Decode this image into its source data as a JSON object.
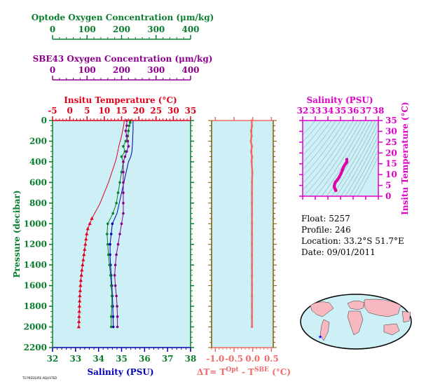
{
  "oxygen_scales": {
    "optode": {
      "title": "Optode Oxygen Concentration (μm/kg)",
      "ticks": [
        "0",
        "100",
        "200",
        "300",
        "400"
      ],
      "color": "#0b7d2f"
    },
    "sbe43": {
      "title": "SBE43 Oxygen Concentration (μm/kg)",
      "ticks": [
        "0",
        "100",
        "200",
        "300",
        "400"
      ],
      "color": "#8b008b"
    }
  },
  "main_panel": {
    "top_title": "Insitu Temperature (°C)",
    "top_ticks": [
      "-5",
      "0",
      "5",
      "10",
      "15",
      "20",
      "25",
      "30",
      "35"
    ],
    "bottom_title": "Salinity (PSU)",
    "bottom_ticks": [
      "32",
      "33",
      "34",
      "35",
      "36",
      "37",
      "38"
    ],
    "y_title": "Pressure (decibar)",
    "y_ticks": [
      "0",
      "200",
      "400",
      "600",
      "800",
      "1000",
      "1200",
      "1400",
      "1600",
      "1800",
      "2000",
      "2200"
    ],
    "background": "#cdeff6"
  },
  "delta_panel": {
    "x_ticks": [
      "-1.0",
      "-0.5",
      "0.0",
      "0.5"
    ],
    "x_title_main": "ΔT= T",
    "x_title_sup1": "Opt",
    "x_title_mid": " - T",
    "x_title_sup2": "SBE",
    "x_title_end": " (°C)"
  },
  "ts_panel": {
    "top_title": "Salinity (PSU)",
    "top_ticks": [
      "32",
      "33",
      "34",
      "35",
      "36",
      "37",
      "38"
    ],
    "y_title": "Insitu Temperature (°C)",
    "y_ticks": [
      "0",
      "5",
      "10",
      "15",
      "20",
      "25",
      "30",
      "35"
    ]
  },
  "float_info": {
    "float": "Float:  5257",
    "profile": "Profile:  246",
    "location": "Location:  33.2°S  51.7°E",
    "date": "Date:  09/01/2011"
  },
  "footer_note": "TS PRESSURE ADJUSTED",
  "chart_data": [
    {
      "type": "line",
      "name": "profile",
      "ylabel": "Pressure (decibar)",
      "ylim": [
        2200,
        0
      ],
      "series": [
        {
          "name": "Insitu Temperature",
          "axis": "temperature",
          "xlim": [
            -5,
            35
          ],
          "color": "#e0001a",
          "marker": "triangle",
          "points": [
            [
              15.8,
              0
            ],
            [
              15.6,
              50
            ],
            [
              15.3,
              100
            ],
            [
              15.0,
              150
            ],
            [
              14.6,
              200
            ],
            [
              14.2,
              250
            ],
            [
              13.9,
              300
            ],
            [
              13.6,
              350
            ],
            [
              13.2,
              400
            ],
            [
              12.7,
              450
            ],
            [
              12.2,
              500
            ],
            [
              11.7,
              550
            ],
            [
              11.2,
              600
            ],
            [
              10.6,
              650
            ],
            [
              10.0,
              700
            ],
            [
              9.4,
              750
            ],
            [
              8.8,
              800
            ],
            [
              8.0,
              850
            ],
            [
              7.2,
              900
            ],
            [
              6.4,
              950
            ],
            [
              5.8,
              1000
            ],
            [
              5.2,
              1050
            ],
            [
              4.9,
              1100
            ],
            [
              4.7,
              1150
            ],
            [
              4.5,
              1200
            ],
            [
              4.3,
              1250
            ],
            [
              4.1,
              1300
            ],
            [
              3.9,
              1350
            ],
            [
              3.7,
              1400
            ],
            [
              3.5,
              1450
            ],
            [
              3.35,
              1500
            ],
            [
              3.2,
              1550
            ],
            [
              3.1,
              1600
            ],
            [
              3.0,
              1650
            ],
            [
              2.9,
              1700
            ],
            [
              2.85,
              1750
            ],
            [
              2.8,
              1800
            ],
            [
              2.75,
              1850
            ],
            [
              2.7,
              1900
            ],
            [
              2.65,
              1950
            ],
            [
              2.6,
              2000
            ]
          ]
        },
        {
          "name": "Salinity",
          "axis": "salinity",
          "xlim": [
            32,
            38
          ],
          "color": "#0000b4",
          "marker": "dot",
          "points": [
            [
              35.5,
              0
            ],
            [
              35.5,
              100
            ],
            [
              35.48,
              200
            ],
            [
              35.45,
              300
            ],
            [
              35.4,
              350
            ],
            [
              35.3,
              400
            ],
            [
              35.2,
              500
            ],
            [
              35.1,
              600
            ],
            [
              35.0,
              700
            ],
            [
              34.9,
              800
            ],
            [
              34.8,
              900
            ],
            [
              34.6,
              1000
            ],
            [
              34.55,
              1100
            ],
            [
              34.5,
              1200
            ],
            [
              34.5,
              1300
            ],
            [
              34.52,
              1400
            ],
            [
              34.55,
              1500
            ],
            [
              34.58,
              1600
            ],
            [
              34.6,
              1700
            ],
            [
              34.62,
              1800
            ],
            [
              34.63,
              1900
            ],
            [
              34.64,
              2000
            ]
          ]
        },
        {
          "name": "Optode Oxygen",
          "axis": "optode_oxygen",
          "xlim": [
            0,
            400
          ],
          "color": "#0b7d2f",
          "marker": "dot",
          "points": [
            [
              225,
              0
            ],
            [
              225,
              20
            ],
            [
              222,
              50
            ],
            [
              220,
              100
            ],
            [
              218,
              150
            ],
            [
              212,
              200
            ],
            [
              205,
              250
            ],
            [
              210,
              300
            ],
            [
              200,
              350
            ],
            [
              205,
              400
            ],
            [
              200,
              500
            ],
            [
              195,
              600
            ],
            [
              190,
              700
            ],
            [
              185,
              800
            ],
            [
              175,
              900
            ],
            [
              160,
              1000
            ],
            [
              158,
              1100
            ],
            [
              160,
              1200
            ],
            [
              162,
              1300
            ],
            [
              165,
              1400
            ],
            [
              168,
              1500
            ],
            [
              170,
              1600
            ],
            [
              172,
              1700
            ],
            [
              172,
              1800
            ],
            [
              170,
              1900
            ],
            [
              170,
              2000
            ]
          ]
        },
        {
          "name": "SBE43 Oxygen",
          "axis": "sbe43_oxygen",
          "xlim": [
            0,
            400
          ],
          "color": "#8b008b",
          "marker": "dot",
          "points": [
            [
              215,
              0
            ],
            [
              215,
              50
            ],
            [
              212,
              100
            ],
            [
              215,
              150
            ],
            [
              218,
              200
            ],
            [
              220,
              250
            ],
            [
              215,
              300
            ],
            [
              210,
              350
            ],
            [
              205,
              400
            ],
            [
              205,
              500
            ],
            [
              205,
              600
            ],
            [
              205,
              700
            ],
            [
              205,
              800
            ],
            [
              205,
              900
            ],
            [
              200,
              1000
            ],
            [
              195,
              1100
            ],
            [
              190,
              1200
            ],
            [
              185,
              1300
            ],
            [
              182,
              1400
            ],
            [
              180,
              1500
            ],
            [
              182,
              1600
            ],
            [
              185,
              1700
            ],
            [
              187,
              1800
            ],
            [
              188,
              1900
            ],
            [
              188,
              2000
            ]
          ]
        }
      ]
    },
    {
      "type": "line",
      "name": "temperature difference",
      "xlabel": "ΔT= T^Opt - T^SBE (°C)",
      "xlim": [
        -1.1,
        0.55
      ],
      "ylim": [
        2200,
        0
      ],
      "series": [
        {
          "name": "ΔT",
          "color": "#f06a6a",
          "points": [
            [
              -0.03,
              0
            ],
            [
              -0.02,
              50
            ],
            [
              -0.04,
              100
            ],
            [
              -0.03,
              150
            ],
            [
              -0.05,
              200
            ],
            [
              -0.02,
              250
            ],
            [
              -0.04,
              300
            ],
            [
              -0.02,
              350
            ],
            [
              -0.03,
              400
            ],
            [
              -0.01,
              500
            ],
            [
              -0.02,
              600
            ],
            [
              -0.02,
              700
            ],
            [
              -0.02,
              800
            ],
            [
              -0.02,
              900
            ],
            [
              -0.02,
              1000
            ],
            [
              -0.02,
              1100
            ],
            [
              -0.02,
              1200
            ],
            [
              -0.02,
              1300
            ],
            [
              -0.02,
              1400
            ],
            [
              -0.02,
              1500
            ],
            [
              -0.02,
              1600
            ],
            [
              -0.02,
              1700
            ],
            [
              -0.02,
              1800
            ],
            [
              -0.02,
              1900
            ],
            [
              -0.02,
              2000
            ]
          ]
        }
      ]
    },
    {
      "type": "scatter",
      "name": "T-S diagram",
      "xlabel": "Salinity (PSU)",
      "ylabel": "Insitu Temperature (°C)",
      "xlim": [
        32,
        38
      ],
      "ylim": [
        0,
        35
      ],
      "series": [
        {
          "name": "T-S",
          "color": "#e000a8",
          "points": [
            [
              34.63,
              2.6
            ],
            [
              34.6,
              3.0
            ],
            [
              34.55,
              3.5
            ],
            [
              34.52,
              4.1
            ],
            [
              34.5,
              4.7
            ],
            [
              34.55,
              5.8
            ],
            [
              34.6,
              6.5
            ],
            [
              34.75,
              7.5
            ],
            [
              34.9,
              8.8
            ],
            [
              35.05,
              10.6
            ],
            [
              35.15,
              12.2
            ],
            [
              35.25,
              13.6
            ],
            [
              35.35,
              14.6
            ],
            [
              35.45,
              15.3
            ],
            [
              35.5,
              15.8
            ],
            [
              35.5,
              17.0
            ]
          ]
        }
      ]
    }
  ]
}
